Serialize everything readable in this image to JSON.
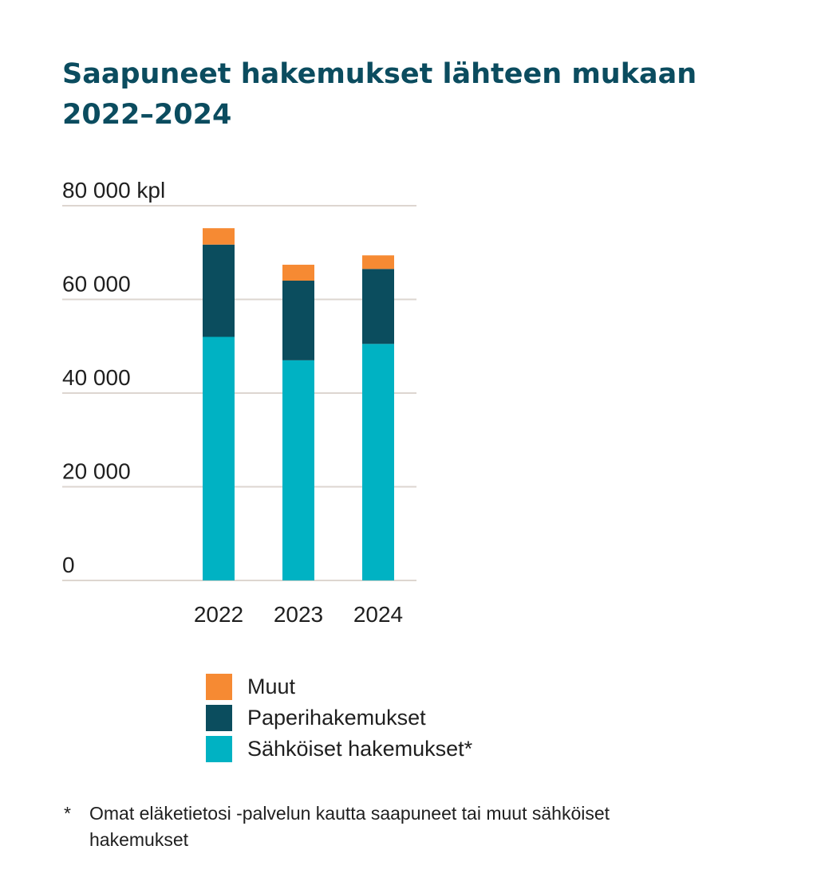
{
  "title": {
    "line1": "Saapuneet hakemukset lähteen mukaan",
    "line2": "2022–2024"
  },
  "chart_data": {
    "type": "bar",
    "stacked": true,
    "categories": [
      "2022",
      "2023",
      "2024"
    ],
    "series": [
      {
        "name": "Sähköiset hakemukset*",
        "color": "#00b2c3",
        "values": [
          52000,
          47000,
          50500
        ]
      },
      {
        "name": "Paperihakemukset",
        "color": "#0b4d5e",
        "values": [
          19700,
          17000,
          16000
        ]
      },
      {
        "name": "Muut",
        "color": "#f68a33",
        "values": [
          3500,
          3400,
          2900
        ]
      }
    ],
    "ylim": [
      0,
      80000
    ],
    "yticks": [
      {
        "value": 0,
        "label": "0"
      },
      {
        "value": 20000,
        "label": "20 000"
      },
      {
        "value": 40000,
        "label": "40 000"
      },
      {
        "value": 60000,
        "label": "60 000"
      },
      {
        "value": 80000,
        "label": "80 000 kpl"
      }
    ],
    "grid": true,
    "gridColor": "#ddd6d0",
    "legend_position": "bottom"
  },
  "legend": {
    "items": [
      {
        "label": "Muut",
        "color": "#f68a33"
      },
      {
        "label": "Paperihakemukset",
        "color": "#0b4d5e"
      },
      {
        "label": "Sähköiset hakemukset*",
        "color": "#00b2c3"
      }
    ]
  },
  "footnote": {
    "marker": "*",
    "text": "Omat eläketietosi -palvelun kautta saapuneet tai muut sähköiset hakemukset"
  }
}
